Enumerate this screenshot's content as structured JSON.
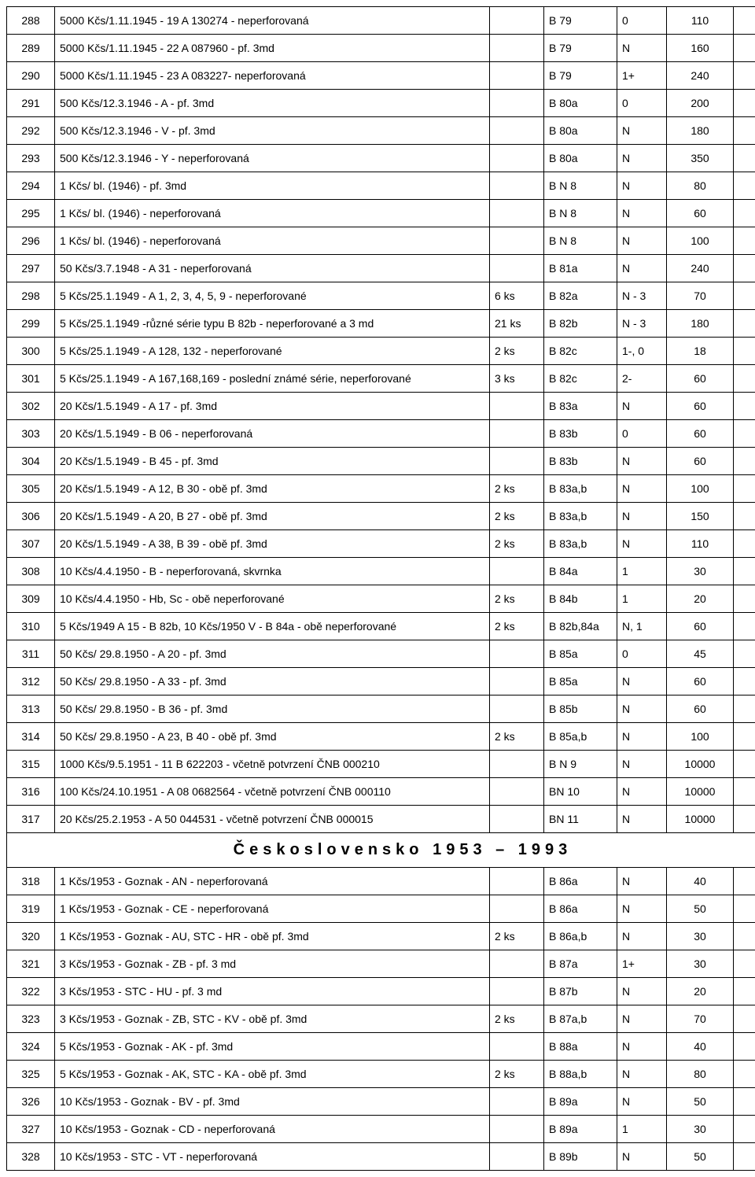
{
  "section_title": "Československo 1953 – 1993",
  "rows1": [
    {
      "num": "288",
      "desc": "5000 Kčs/1.11.1945 - 19 A 130274 - neperforovaná",
      "qty": "",
      "cat": "B 79",
      "grade": "0",
      "price": "110"
    },
    {
      "num": "289",
      "desc": "5000 Kčs/1.11.1945 - 22 A 087960 - pf. 3md",
      "qty": "",
      "cat": "B 79",
      "grade": "N",
      "price": "160"
    },
    {
      "num": "290",
      "desc": "5000 Kčs/1.11.1945 - 23 A  083227- neperforovaná",
      "qty": "",
      "cat": "B 79",
      "grade": "1+",
      "price": "240"
    },
    {
      "num": "291",
      "desc": "500 Kčs/12.3.1946 - A - pf. 3md",
      "qty": "",
      "cat": "B 80a",
      "grade": "0",
      "price": "200"
    },
    {
      "num": "292",
      "desc": "500 Kčs/12.3.1946 - V - pf. 3md",
      "qty": "",
      "cat": "B 80a",
      "grade": "N",
      "price": "180"
    },
    {
      "num": "293",
      "desc": "500 Kčs/12.3.1946 - Y - neperforovaná",
      "qty": "",
      "cat": "B 80a",
      "grade": "N",
      "price": "350"
    },
    {
      "num": "294",
      "desc": "1 Kčs/ bl. (1946) - pf. 3md",
      "qty": "",
      "cat": "B N 8",
      "grade": "N",
      "price": "80"
    },
    {
      "num": "295",
      "desc": "1 Kčs/ bl. (1946) - neperforovaná",
      "qty": "",
      "cat": "B N 8",
      "grade": "N",
      "price": "60"
    },
    {
      "num": "296",
      "desc": "1 Kčs/ bl. (1946) - neperforovaná",
      "qty": "",
      "cat": "B N 8",
      "grade": "N",
      "price": "100"
    },
    {
      "num": "297",
      "desc": "50 Kčs/3.7.1948 - A 31 - neperforovaná",
      "qty": "",
      "cat": "B 81a",
      "grade": "N",
      "price": "240"
    },
    {
      "num": "298",
      "desc": "5 Kčs/25.1.1949 - A 1, 2, 3, 4, 5, 9 - neperforované",
      "qty": "6 ks",
      "cat": "B 82a",
      "grade": "N - 3",
      "price": "70"
    },
    {
      "num": "299",
      "desc": "5 Kčs/25.1.1949 -různé série typu B 82b - neperforované a 3 md",
      "qty": "21 ks",
      "cat": "B 82b",
      "grade": "N - 3",
      "price": "180"
    },
    {
      "num": "300",
      "desc": "5 Kčs/25.1.1949 - A 128, 132 - neperforované",
      "qty": "2 ks",
      "cat": "B 82c",
      "grade": "1-, 0",
      "price": "18"
    },
    {
      "num": "301",
      "desc": "5 Kčs/25.1.1949 - A 167,168,169 - poslední  známé série, neperforované",
      "qty": "3 ks",
      "cat": "B 82c",
      "grade": "2-",
      "price": "60"
    },
    {
      "num": "302",
      "desc": "20 Kčs/1.5.1949 - A 17 - pf. 3md",
      "qty": "",
      "cat": "B 83a",
      "grade": "N",
      "price": "60"
    },
    {
      "num": "303",
      "desc": "20 Kčs/1.5.1949 - B 06 - neperforovaná",
      "qty": "",
      "cat": "B 83b",
      "grade": "0",
      "price": "60"
    },
    {
      "num": "304",
      "desc": "20 Kčs/1.5.1949 - B 45 - pf. 3md",
      "qty": "",
      "cat": "B 83b",
      "grade": "N",
      "price": "60"
    },
    {
      "num": "305",
      "desc": "20 Kčs/1.5.1949 - A 12, B 30 - obě pf. 3md",
      "qty": "2 ks",
      "cat": "B 83a,b",
      "grade": "N",
      "price": "100"
    },
    {
      "num": "306",
      "desc": "20 Kčs/1.5.1949 - A 20, B 27 - obě pf. 3md",
      "qty": "2 ks",
      "cat": "B 83a,b",
      "grade": "N",
      "price": "150"
    },
    {
      "num": "307",
      "desc": "20 Kčs/1.5.1949 - A 38, B 39 - obě pf. 3md",
      "qty": "2 ks",
      "cat": "B 83a,b",
      "grade": "N",
      "price": "110"
    },
    {
      "num": "308",
      "desc": "10 Kčs/4.4.1950 - B - neperforovaná, skvrnka",
      "qty": "",
      "cat": "B 84a",
      "grade": "1",
      "price": "30"
    },
    {
      "num": "309",
      "desc": "10 Kčs/4.4.1950 - Hb, Sc - obě neperforované",
      "qty": "2 ks",
      "cat": "B 84b",
      "grade": "1",
      "price": "20"
    },
    {
      "num": "310",
      "desc": "5 Kčs/1949 A 15 - B 82b, 10 Kčs/1950 V - B 84a - obě neperforované",
      "qty": "2 ks",
      "cat": "B 82b,84a",
      "grade": "N, 1",
      "price": "60"
    },
    {
      "num": "311",
      "desc": "50 Kčs/ 29.8.1950 - A 20 - pf. 3md",
      "qty": "",
      "cat": "B 85a",
      "grade": "0",
      "price": "45"
    },
    {
      "num": "312",
      "desc": "50 Kčs/ 29.8.1950 - A 33 - pf. 3md",
      "qty": "",
      "cat": "B 85a",
      "grade": "N",
      "price": "60"
    },
    {
      "num": "313",
      "desc": "50 Kčs/ 29.8.1950 - B 36 - pf. 3md",
      "qty": "",
      "cat": "B 85b",
      "grade": "N",
      "price": "60"
    },
    {
      "num": "314",
      "desc": "50 Kčs/ 29.8.1950 - A 23, B 40 - obě pf. 3md",
      "qty": "2 ks",
      "cat": "B 85a,b",
      "grade": "N",
      "price": "100"
    },
    {
      "num": "315",
      "desc": "1000 Kčs/9.5.1951 - 11 B 622203 - včetně potvrzení ČNB 000210",
      "qty": "",
      "cat": "B N 9",
      "grade": "N",
      "price": "10000"
    },
    {
      "num": "316",
      "desc": "100 Kčs/24.10.1951 - A 08 0682564 - včetně potvrzení ČNB 000110",
      "qty": "",
      "cat": "BN 10",
      "grade": "N",
      "price": "10000"
    },
    {
      "num": "317",
      "desc": "20 Kčs/25.2.1953 - A 50 044531 - včetně potvrzení ČNB 000015",
      "qty": "",
      "cat": "BN 11",
      "grade": "N",
      "price": "10000"
    }
  ],
  "rows2": [
    {
      "num": "318",
      "desc": "1 Kčs/1953 - Goznak - AN - neperforovaná",
      "qty": "",
      "cat": "B 86a",
      "grade": "N",
      "price": "40"
    },
    {
      "num": "319",
      "desc": "1 Kčs/1953 - Goznak - CE - neperforovaná",
      "qty": "",
      "cat": "B 86a",
      "grade": "N",
      "price": "50"
    },
    {
      "num": "320",
      "desc": "1 Kčs/1953 - Goznak - AU, STC - HR - obě pf. 3md",
      "qty": "2 ks",
      "cat": "B 86a,b",
      "grade": "N",
      "price": "30"
    },
    {
      "num": "321",
      "desc": "3 Kčs/1953 - Goznak - ZB - pf. 3 md",
      "qty": "",
      "cat": "B 87a",
      "grade": "1+",
      "price": "30"
    },
    {
      "num": "322",
      "desc": "3 Kčs/1953 - STC - HU - pf. 3 md",
      "qty": "",
      "cat": "B 87b",
      "grade": "N",
      "price": "20"
    },
    {
      "num": "323",
      "desc": "3 Kčs/1953 - Goznak - ZB, STC - KV - obě pf. 3md",
      "qty": "2 ks",
      "cat": "B 87a,b",
      "grade": "N",
      "price": "70"
    },
    {
      "num": "324",
      "desc": "5 Kčs/1953 - Goznak - AK - pf. 3md",
      "qty": "",
      "cat": "B 88a",
      "grade": "N",
      "price": "40"
    },
    {
      "num": "325",
      "desc": "5 Kčs/1953 - Goznak - AK, STC - KA - obě pf. 3md",
      "qty": "2 ks",
      "cat": "B 88a,b",
      "grade": "N",
      "price": "80"
    },
    {
      "num": "326",
      "desc": "10 Kčs/1953 - Goznak - BV - pf. 3md",
      "qty": "",
      "cat": "B 89a",
      "grade": "N",
      "price": "50"
    },
    {
      "num": "327",
      "desc": "10 Kčs/1953 - Goznak - CD - neperforovaná",
      "qty": "",
      "cat": "B 89a",
      "grade": "1",
      "price": "30"
    },
    {
      "num": "328",
      "desc": "10 Kčs/1953 - STC - VT - neperforovaná",
      "qty": "",
      "cat": "B 89b",
      "grade": "N",
      "price": "50"
    }
  ]
}
